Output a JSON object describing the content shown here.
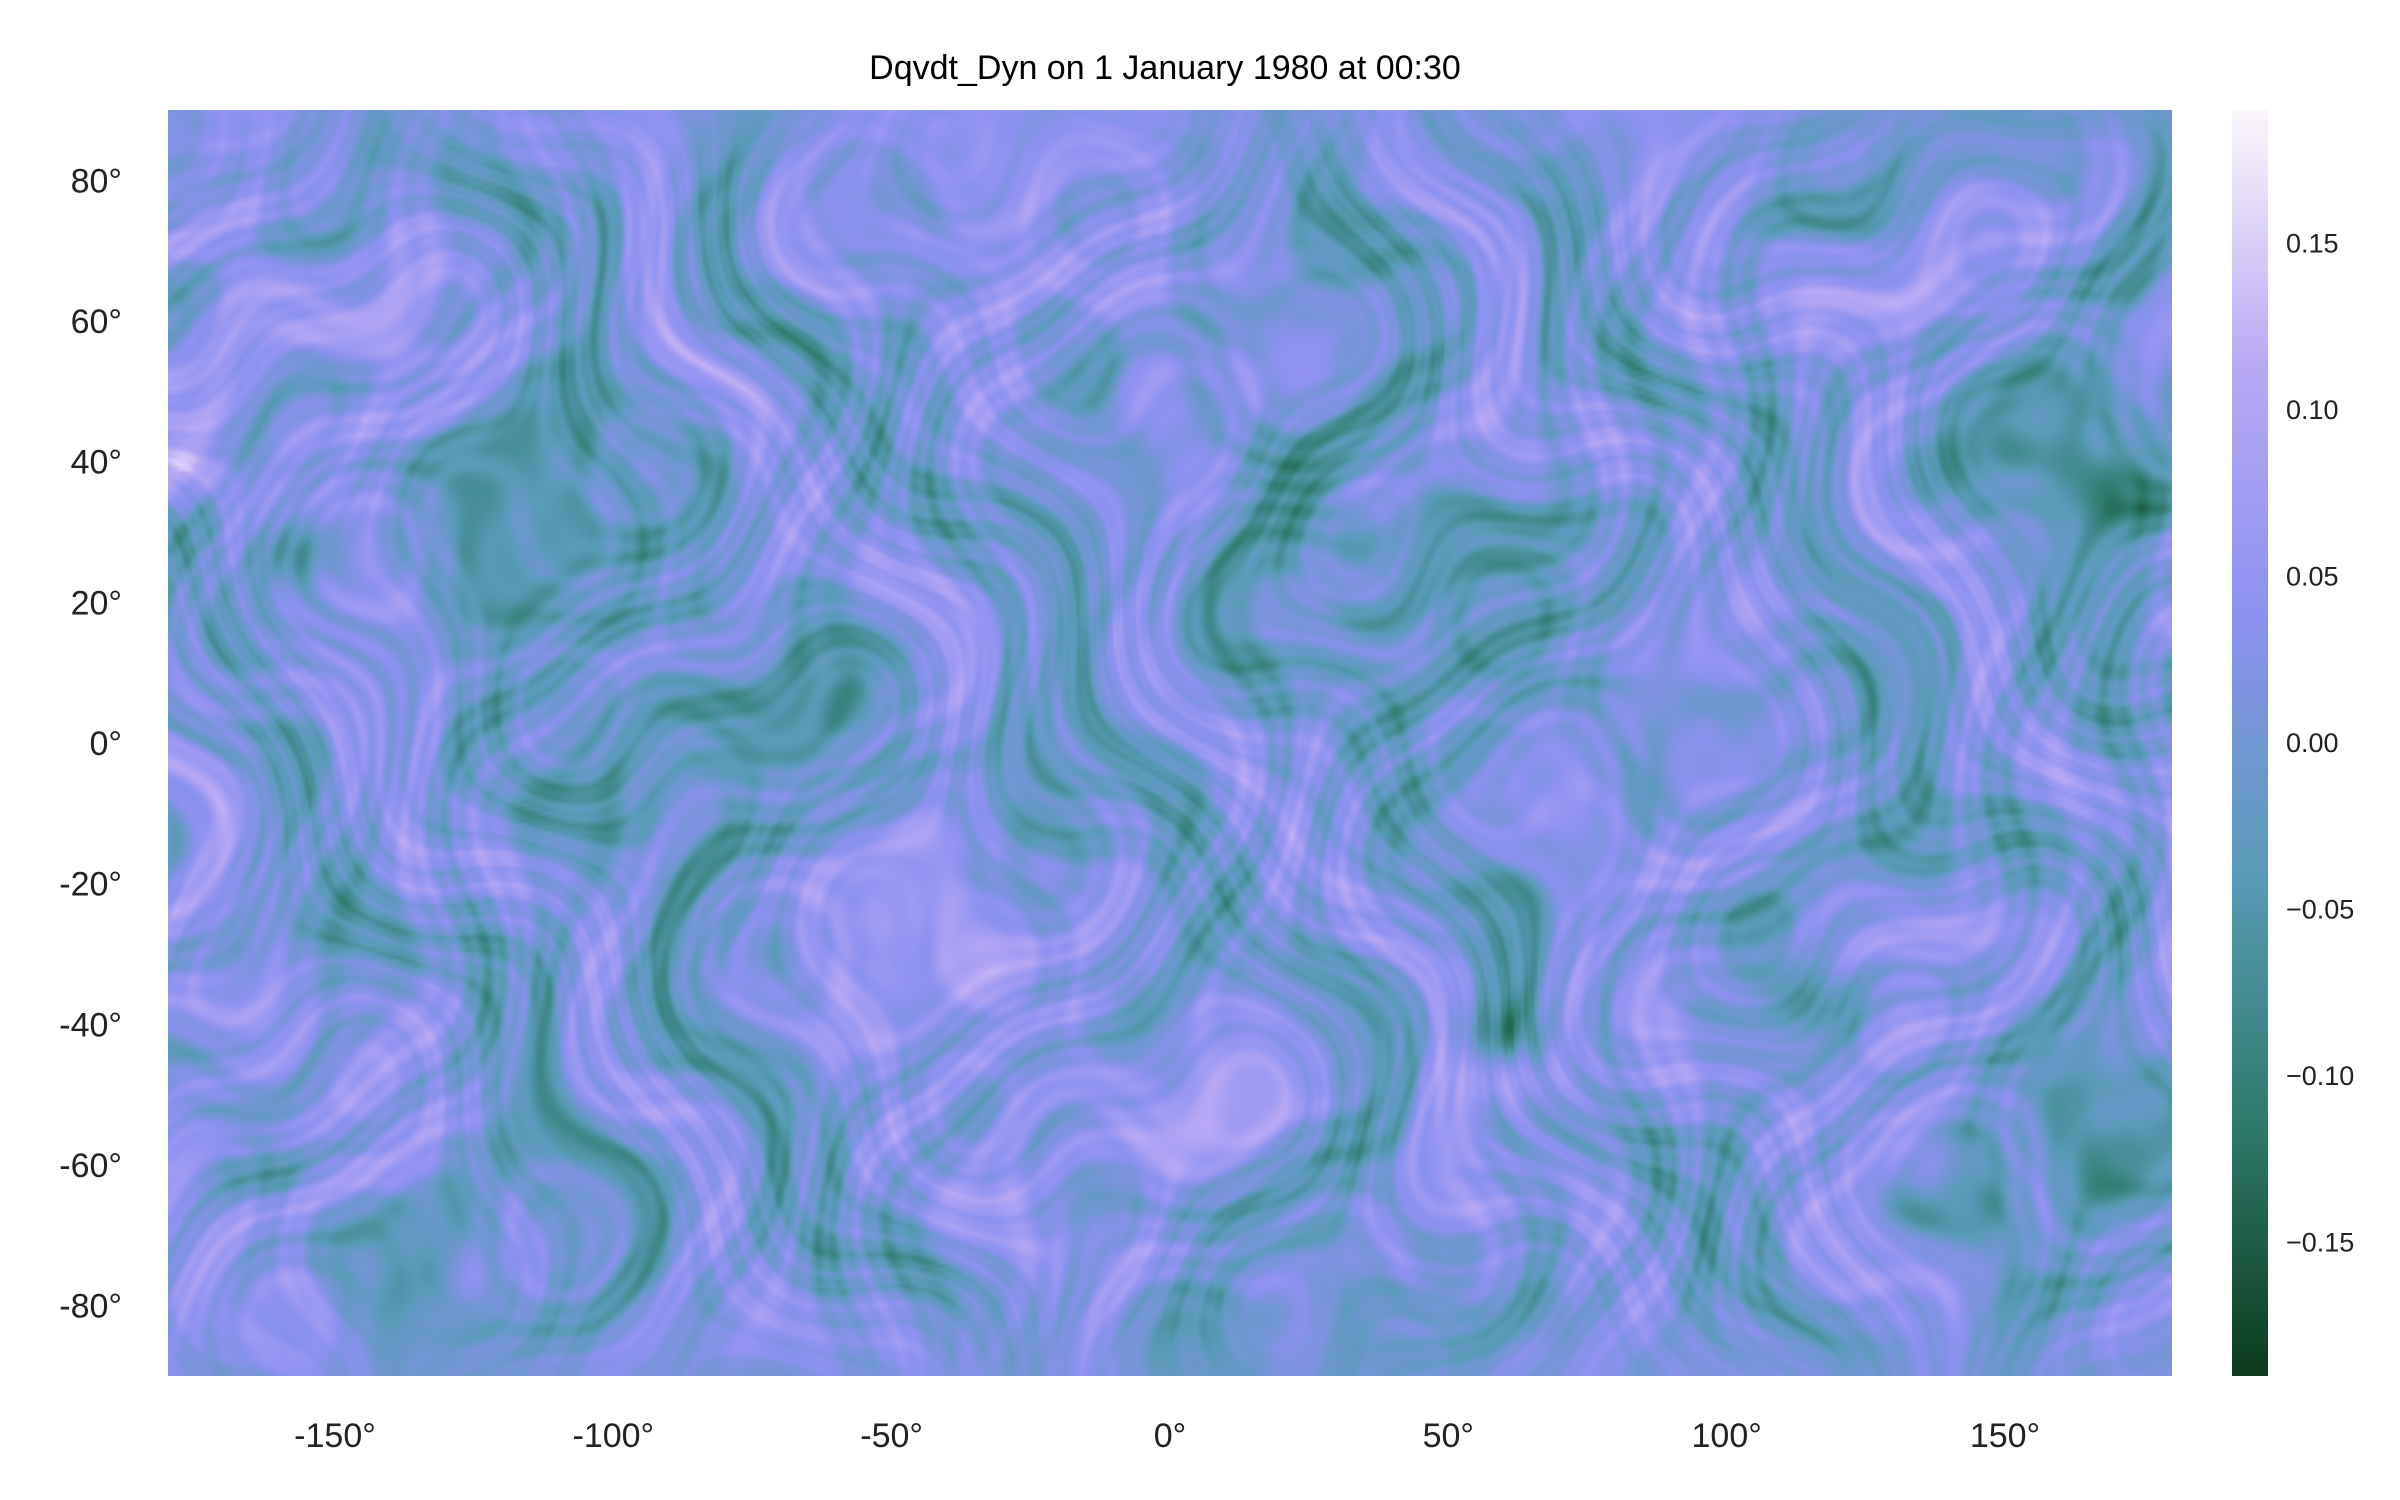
{
  "chart_data": {
    "type": "heatmap",
    "title": "Dqvdt_Dyn on 1 January 1980 at 00:30",
    "xlabel": "",
    "ylabel": "",
    "xlim": [
      -180,
      180
    ],
    "ylim": [
      -90,
      90
    ],
    "x_ticks": [
      {
        "value": -150,
        "label": "-150°"
      },
      {
        "value": -100,
        "label": "-100°"
      },
      {
        "value": -50,
        "label": "-50°"
      },
      {
        "value": 0,
        "label": "0°"
      },
      {
        "value": 50,
        "label": "50°"
      },
      {
        "value": 100,
        "label": "100°"
      },
      {
        "value": 150,
        "label": "150°"
      }
    ],
    "y_ticks": [
      {
        "value": 80,
        "label": "80°"
      },
      {
        "value": 60,
        "label": "60°"
      },
      {
        "value": 40,
        "label": "40°"
      },
      {
        "value": 20,
        "label": "20°"
      },
      {
        "value": 0,
        "label": "0°"
      },
      {
        "value": -20,
        "label": "-20°"
      },
      {
        "value": -40,
        "label": "-40°"
      },
      {
        "value": -60,
        "label": "-60°"
      },
      {
        "value": -80,
        "label": "-80°"
      }
    ],
    "colorbar": {
      "range": [
        -0.19,
        0.19
      ],
      "colormap": "cubehelix-like (dark green → teal → blue → lavender → white)",
      "stops": [
        "#0c3a1c",
        "#2f7a6c",
        "#5a9bb8",
        "#8c92f0",
        "#b9a9f4",
        "#fbf7fb"
      ],
      "ticks": [
        {
          "value": 0.15,
          "label": "0.15"
        },
        {
          "value": 0.1,
          "label": "0.10"
        },
        {
          "value": 0.05,
          "label": "0.05"
        },
        {
          "value": 0.0,
          "label": "0.00"
        },
        {
          "value": -0.05,
          "label": "−0.05"
        },
        {
          "value": -0.1,
          "label": "−0.10"
        },
        {
          "value": -0.15,
          "label": "−0.15"
        }
      ]
    },
    "grid": false,
    "legend": "none",
    "features": [
      {
        "kind": "negative-band",
        "lon": -157,
        "lat": 27
      },
      {
        "kind": "negative-band",
        "lon": 23,
        "lat": 35
      },
      {
        "kind": "negative-band",
        "lon": 170,
        "lat": 36
      },
      {
        "kind": "negative-band",
        "lon": -40,
        "lat": -37
      },
      {
        "kind": "negative-band",
        "lon": 60,
        "lat": -42
      },
      {
        "kind": "negative-band",
        "lon": 115,
        "lat": -37
      },
      {
        "kind": "negative-band",
        "lon": -165,
        "lat": -60
      },
      {
        "kind": "positive-patch",
        "lon": -178,
        "lat": 38
      },
      {
        "kind": "positive-patch",
        "lon": -37,
        "lat": -37
      },
      {
        "kind": "positive-patch",
        "lon": 60,
        "lat": -47
      },
      {
        "kind": "positive-patch",
        "lon": 135,
        "lat": -60
      }
    ]
  }
}
